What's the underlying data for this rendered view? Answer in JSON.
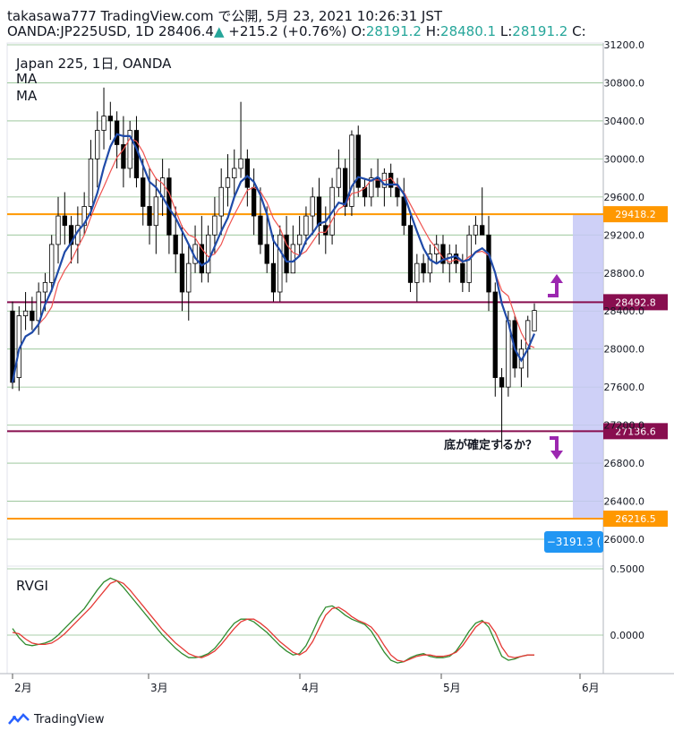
{
  "header": {
    "line1": "takasawa777 TradingView.com で公開, 5月 23, 2021 10:26:31 JST",
    "symbol": "OANDA:JP225USD, 1D",
    "last": "28406.4",
    "change": "+215.2 (+0.76%)",
    "o_label": "O:",
    "o": "28191.2",
    "h_label": "H:",
    "h": "28480.1",
    "l_label": "L:",
    "l": "28191.2",
    "c_label": "C:"
  },
  "legend": {
    "title": "Japan 225, 1日, OANDA",
    "ma1": "MA",
    "ma2": "MA"
  },
  "annotation": "底が確定するか？",
  "measure_label": "−3191.3 (",
  "brand": "TradingView",
  "colors": {
    "up": "#ffffff",
    "down": "#000000",
    "ma_fast": "#1f4aa8",
    "ma_slow": "#ef5350",
    "orange": "#ff9800",
    "purple_line": "#880e4f",
    "arrow": "#9c27b0",
    "range": "#c5c8f6",
    "rvgi_green": "#2e8b2e",
    "rvgi_red": "#e53935"
  },
  "chart_data": [
    {
      "type": "candlestick",
      "y_axis_ticks": [
        31200,
        30800,
        30400,
        30000,
        29600,
        29200,
        28800,
        28400,
        28000,
        27600,
        27200,
        26800,
        26400,
        26000
      ],
      "ylim": [
        25880,
        31260
      ],
      "x_labels": [
        "2月",
        "3月",
        "4月",
        "5月",
        "6月"
      ],
      "levels": [
        {
          "value": 29418.2,
          "label": "29418.2",
          "color": "orange"
        },
        {
          "value": 28492.8,
          "label": "28492.8",
          "color": "purple_line"
        },
        {
          "value": 27136.6,
          "label": "27136.6",
          "color": "purple_line"
        },
        {
          "value": 26216.5,
          "label": "26216.5",
          "color": "orange"
        }
      ],
      "candles": [
        [
          28400,
          28500,
          27580,
          27650
        ],
        [
          27700,
          28450,
          27560,
          28350
        ],
        [
          28350,
          28600,
          28200,
          28400
        ],
        [
          28400,
          28550,
          28200,
          28300
        ],
        [
          28300,
          28700,
          28150,
          28600
        ],
        [
          28600,
          28800,
          28400,
          28700
        ],
        [
          28700,
          29200,
          28600,
          29100
        ],
        [
          29100,
          29600,
          28900,
          29400
        ],
        [
          29400,
          29650,
          29100,
          29300
        ],
        [
          29300,
          29400,
          28900,
          29100
        ],
        [
          29100,
          29500,
          28900,
          29300
        ],
        [
          29300,
          29650,
          29200,
          29500
        ],
        [
          29500,
          30200,
          29400,
          30000
        ],
        [
          30000,
          30500,
          29700,
          30300
        ],
        [
          30300,
          30750,
          30100,
          30450
        ],
        [
          30450,
          30600,
          30200,
          30400
        ],
        [
          30400,
          30500,
          29900,
          30150
        ],
        [
          30150,
          30450,
          29700,
          29900
        ],
        [
          29900,
          30400,
          29800,
          30300
        ],
        [
          30300,
          30450,
          29700,
          29800
        ],
        [
          29800,
          30000,
          29300,
          29500
        ],
        [
          29500,
          29900,
          29100,
          29300
        ],
        [
          29300,
          29800,
          29000,
          29600
        ],
        [
          29600,
          30000,
          29400,
          29800
        ],
        [
          29800,
          29900,
          29000,
          29200
        ],
        [
          29200,
          29500,
          28800,
          29000
        ],
        [
          29000,
          29300,
          28400,
          28600
        ],
        [
          28600,
          29100,
          28300,
          28900
        ],
        [
          28900,
          29300,
          28800,
          29100
        ],
        [
          29100,
          29400,
          28700,
          28800
        ],
        [
          28800,
          29300,
          28700,
          29200
        ],
        [
          29200,
          29600,
          29000,
          29400
        ],
        [
          29400,
          29900,
          29200,
          29700
        ],
        [
          29700,
          30050,
          29500,
          29800
        ],
        [
          29800,
          30100,
          29600,
          29900
        ],
        [
          29900,
          30600,
          29800,
          30000
        ],
        [
          30000,
          30100,
          29500,
          29700
        ],
        [
          29700,
          29900,
          29200,
          29400
        ],
        [
          29400,
          29700,
          29000,
          29100
        ],
        [
          29100,
          29500,
          28800,
          28900
        ],
        [
          28900,
          29200,
          28500,
          28600
        ],
        [
          28600,
          29300,
          28500,
          29200
        ],
        [
          29200,
          29400,
          28700,
          28800
        ],
        [
          28800,
          29300,
          28800,
          29100
        ],
        [
          29100,
          29400,
          29000,
          29200
        ],
        [
          29200,
          29500,
          29100,
          29400
        ],
        [
          29400,
          29700,
          29200,
          29600
        ],
        [
          29600,
          29800,
          29100,
          29300
        ],
        [
          29300,
          29500,
          29000,
          29200
        ],
        [
          29200,
          29800,
          29100,
          29700
        ],
        [
          29700,
          30100,
          29600,
          29900
        ],
        [
          29900,
          30000,
          29400,
          29500
        ],
        [
          29500,
          30300,
          29400,
          30250
        ],
        [
          30250,
          30350,
          29600,
          29700
        ],
        [
          29700,
          29800,
          29500,
          29600
        ],
        [
          29600,
          29900,
          29500,
          29800
        ],
        [
          29800,
          30000,
          29600,
          29700
        ],
        [
          29700,
          29900,
          29500,
          29850
        ],
        [
          29850,
          29950,
          29600,
          29700
        ],
        [
          29700,
          29800,
          29500,
          29600
        ],
        [
          29600,
          29800,
          29200,
          29300
        ],
        [
          29300,
          29400,
          28600,
          28700
        ],
        [
          28700,
          29000,
          28500,
          28900
        ],
        [
          28900,
          29000,
          28700,
          28800
        ],
        [
          28800,
          29100,
          28700,
          29000
        ],
        [
          29000,
          29200,
          28900,
          29100
        ],
        [
          29100,
          29200,
          28800,
          28900
        ],
        [
          28900,
          29100,
          28700,
          29000
        ],
        [
          29000,
          29100,
          28800,
          28900
        ],
        [
          28900,
          29000,
          28600,
          28700
        ],
        [
          28700,
          29300,
          28600,
          29200
        ],
        [
          29200,
          29400,
          29100,
          29300
        ],
        [
          29300,
          29700,
          29200,
          29200
        ],
        [
          29200,
          29400,
          28400,
          28600
        ],
        [
          28600,
          28700,
          27500,
          27700
        ],
        [
          27700,
          27800,
          26950,
          27600
        ],
        [
          27600,
          28400,
          27500,
          28300
        ],
        [
          28300,
          28350,
          27700,
          27800
        ],
        [
          27800,
          28100,
          27600,
          28000
        ],
        [
          28000,
          28350,
          27700,
          28300
        ],
        [
          28191,
          28480,
          28191,
          28406
        ]
      ]
    },
    {
      "type": "line",
      "name": "RVGI",
      "y_axis_ticks": [
        0.5,
        0.0
      ],
      "ylim": [
        -0.28,
        0.5
      ],
      "series": [
        {
          "color": "rvgi_green",
          "values": [
            0.05,
            -0.02,
            -0.07,
            -0.08,
            -0.07,
            -0.06,
            -0.04,
            0.0,
            0.05,
            0.1,
            0.15,
            0.2,
            0.27,
            0.34,
            0.4,
            0.43,
            0.41,
            0.36,
            0.3,
            0.24,
            0.18,
            0.12,
            0.06,
            0.0,
            -0.05,
            -0.1,
            -0.14,
            -0.17,
            -0.17,
            -0.16,
            -0.14,
            -0.1,
            -0.04,
            0.03,
            0.09,
            0.12,
            0.12,
            0.1,
            0.06,
            0.02,
            -0.03,
            -0.08,
            -0.12,
            -0.15,
            -0.14,
            -0.08,
            0.02,
            0.13,
            0.21,
            0.22,
            0.19,
            0.15,
            0.12,
            0.1,
            0.08,
            0.03,
            -0.05,
            -0.13,
            -0.19,
            -0.21,
            -0.2,
            -0.17,
            -0.15,
            -0.14,
            -0.16,
            -0.17,
            -0.17,
            -0.16,
            -0.12,
            -0.05,
            0.03,
            0.09,
            0.11,
            0.06,
            -0.05,
            -0.16,
            -0.19,
            -0.18,
            -0.16,
            -0.15,
            -0.15
          ]
        },
        {
          "color": "rvgi_red",
          "values": [
            0.02,
            0.01,
            -0.03,
            -0.06,
            -0.07,
            -0.07,
            -0.06,
            -0.03,
            0.01,
            0.06,
            0.11,
            0.16,
            0.21,
            0.27,
            0.33,
            0.39,
            0.41,
            0.39,
            0.34,
            0.28,
            0.22,
            0.16,
            0.1,
            0.04,
            -0.01,
            -0.06,
            -0.1,
            -0.14,
            -0.16,
            -0.17,
            -0.15,
            -0.12,
            -0.07,
            -0.01,
            0.05,
            0.1,
            0.12,
            0.12,
            0.09,
            0.05,
            0.0,
            -0.05,
            -0.09,
            -0.13,
            -0.15,
            -0.12,
            -0.05,
            0.05,
            0.15,
            0.2,
            0.21,
            0.18,
            0.14,
            0.11,
            0.09,
            0.06,
            0.0,
            -0.08,
            -0.15,
            -0.19,
            -0.2,
            -0.18,
            -0.16,
            -0.15,
            -0.15,
            -0.16,
            -0.16,
            -0.15,
            -0.13,
            -0.08,
            -0.01,
            0.06,
            0.1,
            0.09,
            0.02,
            -0.09,
            -0.16,
            -0.17,
            -0.16,
            -0.15,
            -0.15
          ]
        }
      ]
    }
  ]
}
